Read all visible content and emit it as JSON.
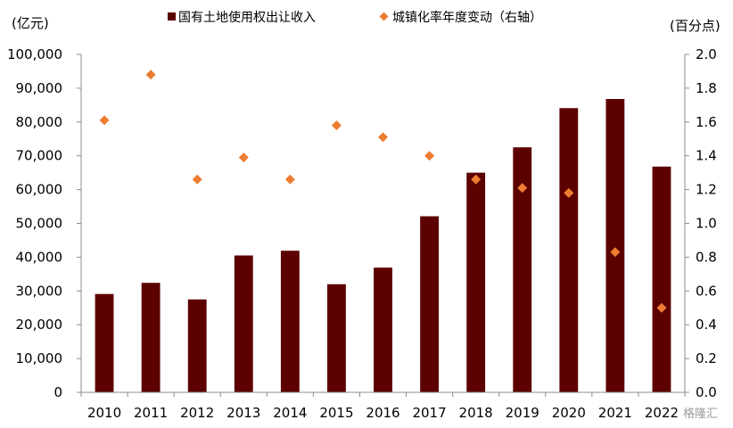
{
  "chart_data": {
    "type": "bar",
    "categories": [
      "2010",
      "2011",
      "2012",
      "2013",
      "2014",
      "2015",
      "2016",
      "2017",
      "2018",
      "2019",
      "2020",
      "2021",
      "2022"
    ],
    "left_axis": {
      "label": "(亿元)",
      "ylim": [
        0,
        100000
      ],
      "ticks": [
        0,
        10000,
        20000,
        30000,
        40000,
        50000,
        60000,
        70000,
        80000,
        90000,
        100000
      ],
      "tick_labels": [
        "0",
        "10,000",
        "20,000",
        "30,000",
        "40,000",
        "50,000",
        "60,000",
        "70,000",
        "80,000",
        "90,000",
        "100,000"
      ]
    },
    "right_axis": {
      "label": "(百分点)",
      "ylim": [
        0,
        2.0
      ],
      "ticks": [
        0,
        0.2,
        0.4,
        0.6,
        0.8,
        1.0,
        1.2,
        1.4,
        1.6,
        1.8,
        2.0
      ],
      "tick_labels": [
        "0.0",
        "0.2",
        "0.4",
        "0.6",
        "0.8",
        "1.0",
        "1.2",
        "1.4",
        "1.6",
        "1.8",
        "2.0"
      ]
    },
    "series": [
      {
        "name": "国有土地使用权出让收入",
        "type": "bar",
        "axis": "left",
        "color": "#5c0000",
        "values": [
          29100,
          32400,
          27500,
          40500,
          41900,
          32000,
          36900,
          52100,
          65000,
          72500,
          84100,
          86800,
          66800
        ]
      },
      {
        "name": "城镇化率年度变动（右轴）",
        "type": "scatter",
        "axis": "right",
        "color": "#ed7d31",
        "marker": "diamond",
        "values": [
          1.61,
          1.88,
          1.26,
          1.39,
          1.26,
          1.58,
          1.51,
          1.4,
          1.26,
          1.21,
          1.18,
          0.83,
          0.5
        ]
      }
    ],
    "grid": false,
    "legend_position": "top-center"
  },
  "watermark": "格隆汇"
}
